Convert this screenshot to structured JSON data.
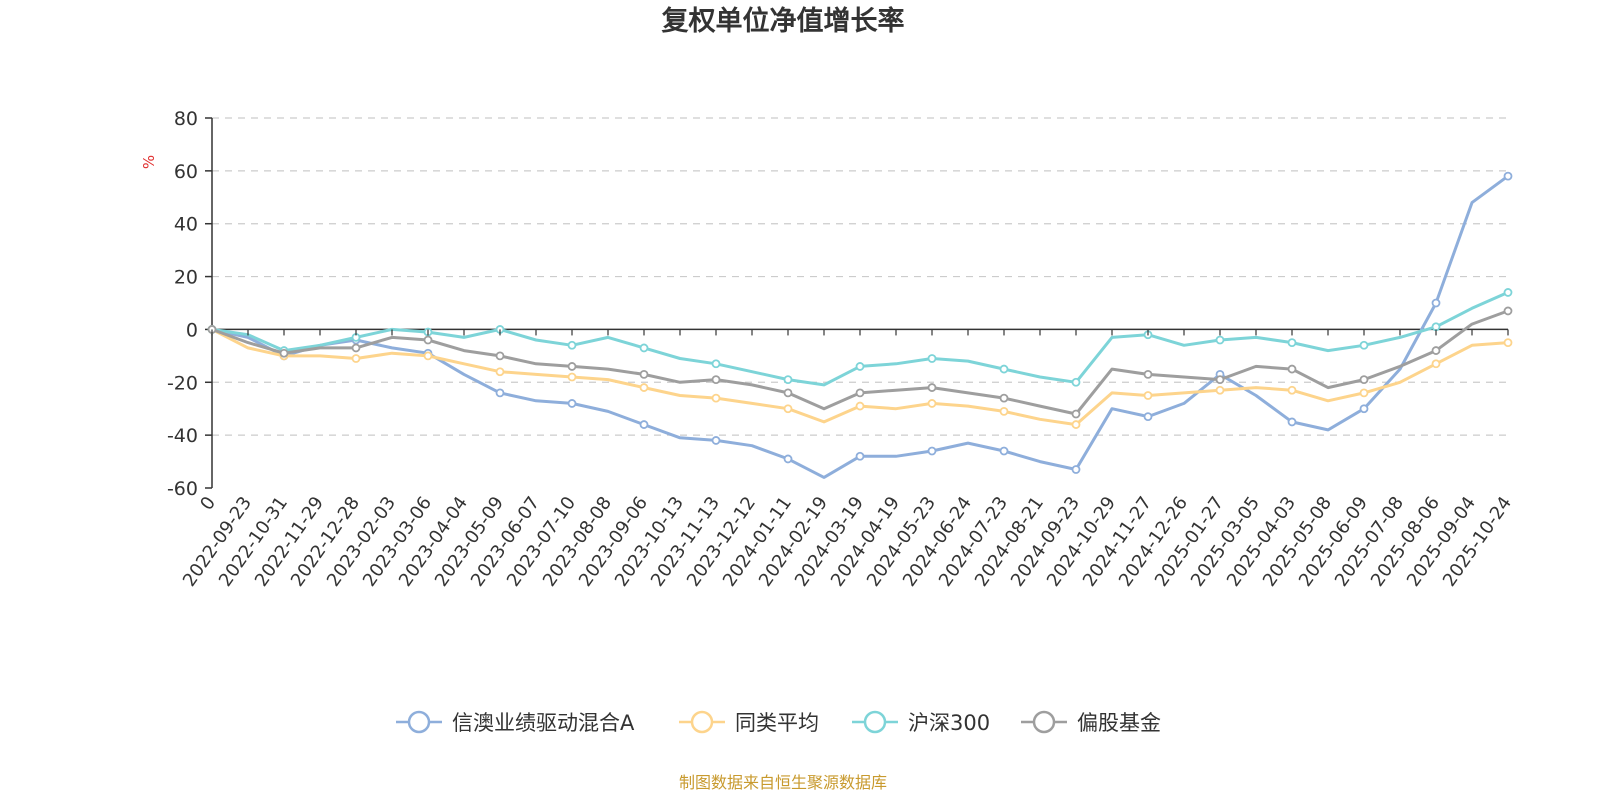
{
  "chart_data": {
    "type": "line",
    "title": "复权单位净值增长率",
    "ylabel": "%",
    "ylim": [
      -60,
      80
    ],
    "yticks": [
      80,
      60,
      40,
      20,
      0,
      -20,
      -40,
      -60
    ],
    "x_ticks": [
      "0",
      "2022-09-23",
      "2022-10-31",
      "2022-11-29",
      "2022-12-28",
      "2023-02-03",
      "2023-03-06",
      "2023-04-04",
      "2023-05-09",
      "2023-06-07",
      "2023-07-10",
      "2023-08-08",
      "2023-09-06",
      "2023-10-13",
      "2023-11-13",
      "2023-12-12",
      "2024-01-11",
      "2024-02-19",
      "2024-03-19",
      "2024-04-19",
      "2024-05-23",
      "2024-06-24",
      "2024-07-23",
      "2024-08-21",
      "2024-09-23",
      "2024-10-29",
      "2024-11-27",
      "2024-12-26",
      "2025-01-27",
      "2025-03-05",
      "2025-04-03",
      "2025-05-08",
      "2025-06-09",
      "2025-07-08",
      "2025-08-06",
      "2025-09-04",
      "2025-10-24"
    ],
    "grid": "dashed horizontal",
    "legend_position": "bottom-center",
    "series": [
      {
        "name": "信澳业绩驱动混合A",
        "color": "#8eaedb",
        "values": [
          0,
          -3,
          -10,
          -6,
          -4,
          -7,
          -9,
          -17,
          -24,
          -27,
          -28,
          -31,
          -36,
          -41,
          -42,
          -44,
          -49,
          -56,
          -48,
          -48,
          -46,
          -43,
          -46,
          -50,
          -53,
          -30,
          -33,
          -28,
          -17,
          -25,
          -35,
          -38,
          -30,
          -15,
          10,
          48,
          58
        ]
      },
      {
        "name": "同类平均",
        "color": "#fdd48c",
        "values": [
          0,
          -7,
          -10,
          -10,
          -11,
          -9,
          -10,
          -13,
          -16,
          -17,
          -18,
          -19,
          -22,
          -25,
          -26,
          -28,
          -30,
          -35,
          -29,
          -30,
          -28,
          -29,
          -31,
          -34,
          -36,
          -24,
          -25,
          -24,
          -23,
          -22,
          -23,
          -27,
          -24,
          -20,
          -13,
          -6,
          -5
        ]
      },
      {
        "name": "沪深300",
        "color": "#7dd4d8",
        "values": [
          0,
          -2,
          -8,
          -6,
          -3,
          0,
          -1,
          -3,
          0,
          -4,
          -6,
          -3,
          -7,
          -11,
          -13,
          -16,
          -19,
          -21,
          -14,
          -13,
          -11,
          -12,
          -15,
          -18,
          -20,
          -3,
          -2,
          -6,
          -4,
          -3,
          -5,
          -8,
          -6,
          -3,
          1,
          8,
          14
        ]
      },
      {
        "name": "偏股基金",
        "color": "#9e9e9e",
        "values": [
          0,
          -5,
          -9,
          -7,
          -7,
          -3,
          -4,
          -8,
          -10,
          -13,
          -14,
          -15,
          -17,
          -20,
          -19,
          -21,
          -24,
          -30,
          -24,
          -23,
          -22,
          -24,
          -26,
          -29,
          -32,
          -15,
          -17,
          -18,
          -19,
          -14,
          -15,
          -22,
          -19,
          -14,
          -8,
          2,
          7
        ]
      }
    ],
    "source_note": "制图数据来自恒生聚源数据库"
  }
}
